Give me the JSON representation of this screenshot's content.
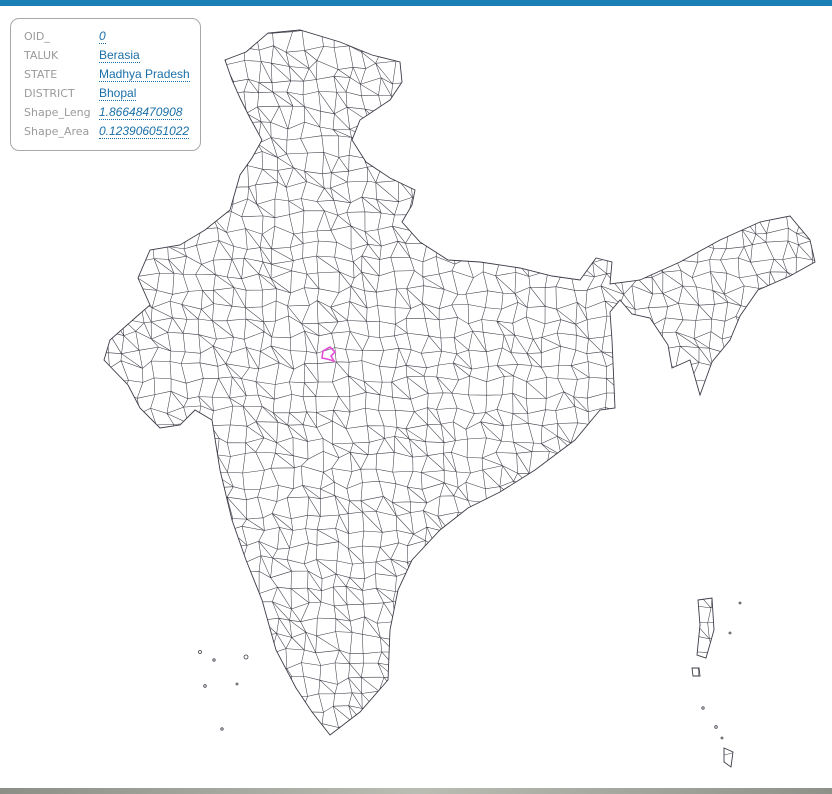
{
  "popup": {
    "rows": [
      {
        "key": "OID_",
        "value": "0",
        "numeric": true
      },
      {
        "key": "TALUK",
        "value": "Berasia",
        "numeric": false
      },
      {
        "key": "STATE",
        "value": "Madhya Pradesh",
        "numeric": false
      },
      {
        "key": "DISTRICT",
        "value": "Bhopal",
        "numeric": false
      },
      {
        "key": "Shape_Leng",
        "value": "1.86648470908",
        "numeric": true
      },
      {
        "key": "Shape_Area",
        "value": "0.123906051022",
        "numeric": true
      }
    ]
  },
  "map": {
    "region": "India taluk boundaries",
    "selected_feature": "Berasia",
    "colors": {
      "boundary": "#3c3c48",
      "selected": "#e24fd6",
      "land": "#ffffff",
      "top_bar": "#1a7fb5"
    }
  }
}
